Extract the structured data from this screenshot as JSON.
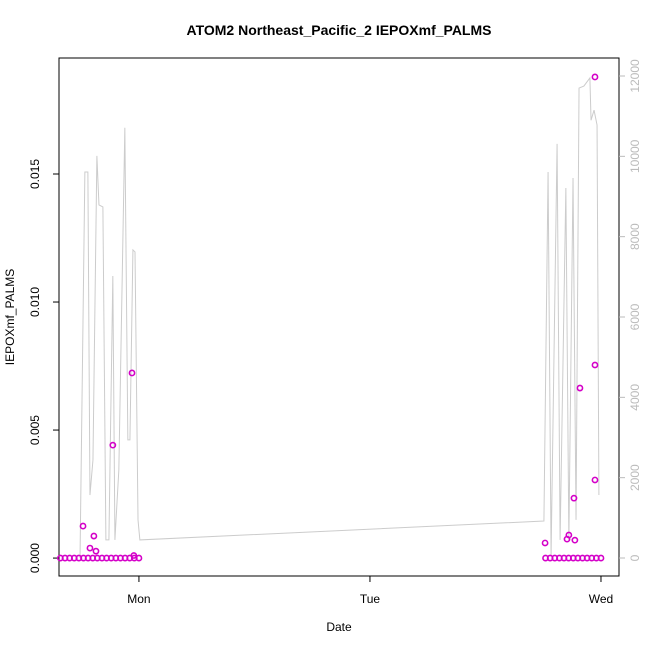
{
  "chart_data": {
    "type": "scatter",
    "title": "ATOM2 Northeast_Pacific_2 IEPOXmf_PALMS",
    "x_label": "Date",
    "y_label": "IEPOXmf_PALMS",
    "xlim": [
      0.654,
      3.078
    ],
    "xticks": [
      {
        "value": 1,
        "label": "Mon"
      },
      {
        "value": 2,
        "label": "Tue"
      },
      {
        "value": 3,
        "label": "Wed"
      }
    ],
    "ylim": [
      -0.0007,
      0.01953
    ],
    "yticks": [
      {
        "value": 0,
        "label": "0.000"
      },
      {
        "value": 0.005,
        "label": "0.005"
      },
      {
        "value": 0.01,
        "label": "0.010"
      },
      {
        "value": 0.015,
        "label": "0.015"
      }
    ],
    "y2lim": [
      -448,
      12448
    ],
    "y2ticks": [
      0,
      2000,
      4000,
      6000,
      8000,
      10000,
      12000
    ],
    "series": [
      {
        "type": "line",
        "axis": "y2",
        "color": "#cccccc",
        "x": [
          0.745,
          0.766,
          0.779,
          0.788,
          0.801,
          0.818,
          0.827,
          0.844,
          0.857,
          0.87,
          0.887,
          0.896,
          0.913,
          0.939,
          0.952,
          0.961,
          0.974,
          0.983,
          0.996,
          1.004,
          2.753,
          2.771,
          2.784,
          2.81,
          2.823,
          2.848,
          2.861,
          2.879,
          2.892,
          2.905,
          2.926,
          2.952,
          2.957,
          2.97,
          2.983,
          2.991
        ],
        "values": [
          0,
          9610,
          9610,
          1568,
          2440,
          10010,
          8790,
          8740,
          450,
          450,
          7020,
          450,
          2190,
          10710,
          2940,
          2940,
          7670,
          7620,
          950,
          450,
          920,
          9610,
          75,
          10310,
          450,
          9210,
          450,
          9460,
          950,
          11700,
          11750,
          11950,
          10900,
          11150,
          10780,
          1570
        ]
      },
      {
        "type": "scatter",
        "axis": "y",
        "color": "#d400c8",
        "x": [
          0.66,
          0.68,
          0.7,
          0.72,
          0.74,
          0.758,
          0.76,
          0.78,
          0.788,
          0.8,
          0.805,
          0.814,
          0.82,
          0.84,
          0.86,
          0.88,
          0.887,
          0.9,
          0.92,
          0.94,
          0.96,
          0.97,
          0.978,
          0.98,
          1.0,
          2.758,
          2.76,
          2.78,
          2.8,
          2.82,
          2.84,
          2.853,
          2.86,
          2.861,
          2.88,
          2.883,
          2.887,
          2.9,
          2.909,
          2.92,
          2.94,
          2.96,
          2.974,
          2.974,
          2.974,
          2.98,
          3.0
        ],
        "values": [
          0,
          0,
          0,
          0,
          0,
          0.00125,
          0,
          0,
          0.00039,
          0,
          0.00086,
          0.00027,
          0,
          0,
          0,
          0,
          0.00441,
          0,
          0,
          0,
          0,
          0.00723,
          0.0001,
          0,
          0,
          0.00059,
          0,
          0,
          0,
          0,
          0,
          0.00074,
          0,
          0.0009,
          0,
          0.00234,
          0.0007,
          0,
          0.00664,
          0,
          0,
          0,
          0.00754,
          0.00305,
          0.01879,
          0,
          0
        ]
      }
    ]
  }
}
